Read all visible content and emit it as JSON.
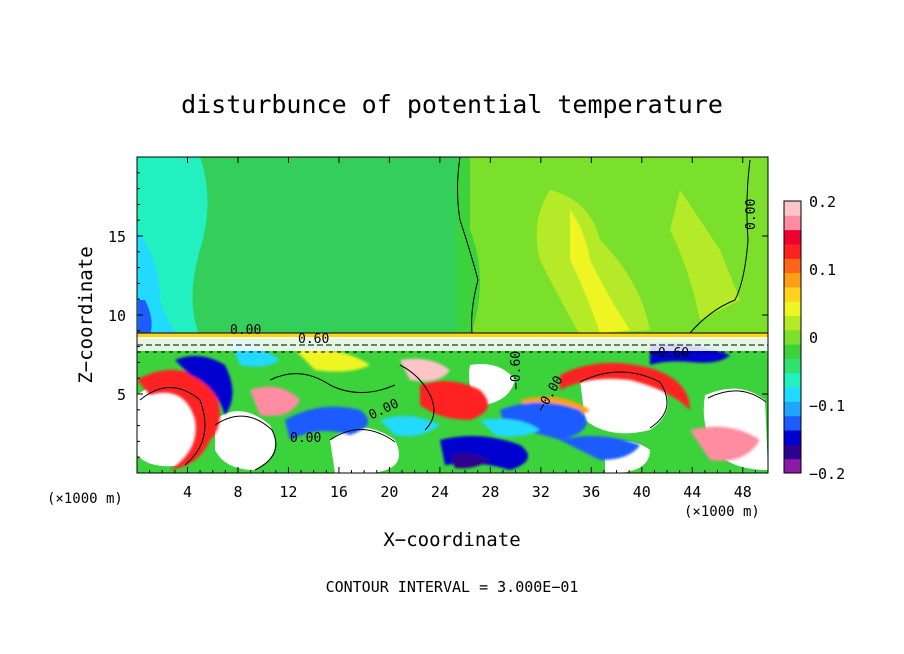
{
  "chart_data": {
    "type": "heatmap",
    "title": "disturbunce of potential temperature",
    "xlabel": "X−coordinate",
    "ylabel": "Z−coordinate",
    "x_unit_left": "(×1000 m)",
    "x_unit_right": "(×1000 m)",
    "x_ticks": [
      4,
      8,
      12,
      16,
      20,
      24,
      28,
      32,
      36,
      40,
      44,
      48
    ],
    "y_ticks": [
      5,
      10,
      15
    ],
    "xlim": [
      0,
      50
    ],
    "ylim": [
      0,
      20
    ],
    "colorbar": {
      "ticks": [
        "0.2",
        "0.1",
        "0",
        "−0.1",
        "−0.2"
      ],
      "tick_values": [
        0.2,
        0.1,
        0,
        -0.1,
        -0.2
      ],
      "range": [
        -0.2,
        0.2
      ],
      "colors": [
        "#8c1aa8",
        "#2e008f",
        "#0000d0",
        "#1e5cff",
        "#1fa5ff",
        "#22d9ff",
        "#22f0c0",
        "#30e070",
        "#3cd23c",
        "#7ae02c",
        "#b4ea28",
        "#eef522",
        "#ffd21e",
        "#ffa014",
        "#ff6418",
        "#ff2020",
        "#f00030",
        "#ff8ca0",
        "#ffc4c8"
      ]
    },
    "contour_labels": [
      "0.00",
      "0.00",
      "0.00",
      "0.00",
      "0.60",
      "−0.60",
      "−0.60",
      "−0.00",
      "0.00"
    ],
    "footer": "CONTOUR INTERVAL = 3.000E−01"
  }
}
